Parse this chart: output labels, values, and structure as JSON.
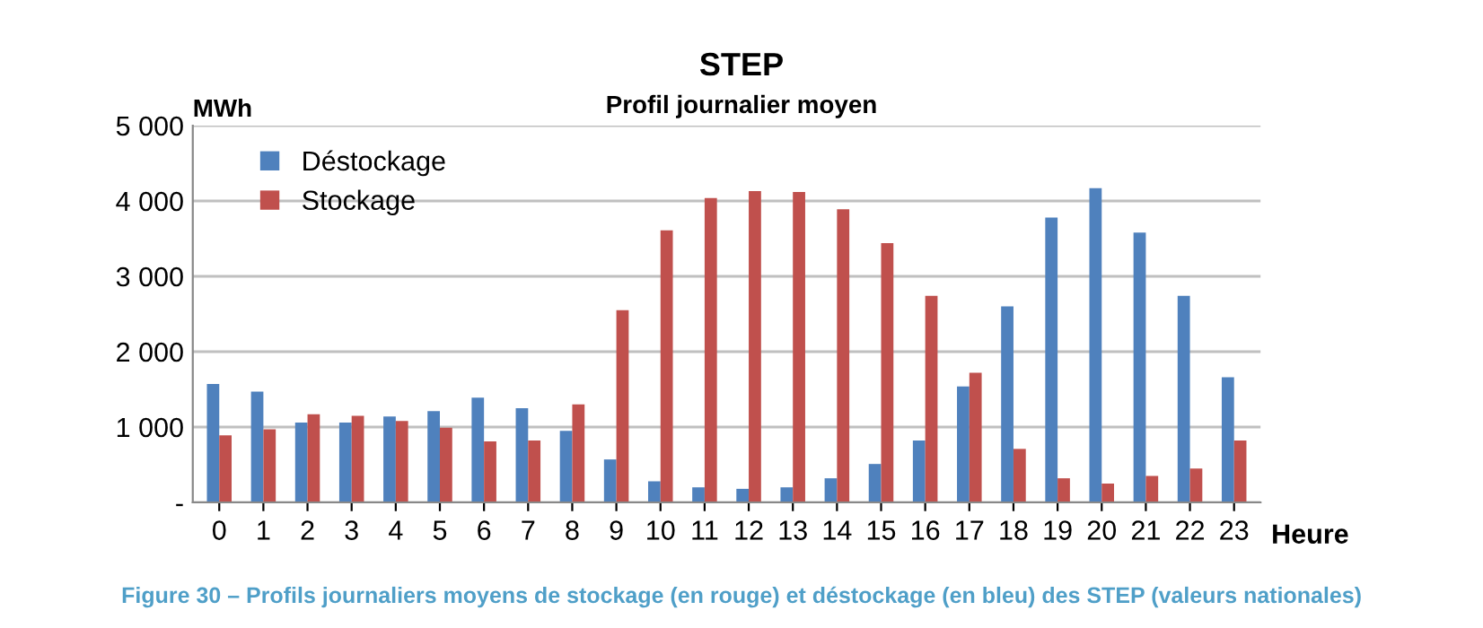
{
  "chart_data": {
    "type": "bar",
    "title": "STEP",
    "subtitle": "Profil journalier moyen",
    "ylabel": "MWh",
    "xlabel": "Heure",
    "annotations": [
      "Figure 30 – Profils journaliers moyens de stockage (en rouge) et déstockage (en bleu) des STEP (valeurs nationales)"
    ],
    "categories": [
      "0",
      "1",
      "2",
      "3",
      "4",
      "5",
      "6",
      "7",
      "8",
      "9",
      "10",
      "11",
      "12",
      "13",
      "14",
      "15",
      "16",
      "17",
      "18",
      "19",
      "20",
      "21",
      "22",
      "23"
    ],
    "series": [
      {
        "name": "Déstockage",
        "color": "#4f81bd",
        "values": [
          1570,
          1470,
          1060,
          1060,
          1140,
          1210,
          1390,
          1250,
          950,
          570,
          280,
          200,
          180,
          200,
          320,
          510,
          820,
          1540,
          2600,
          3780,
          4170,
          3580,
          2740,
          1660
        ]
      },
      {
        "name": "Stockage",
        "color": "#c0504d",
        "values": [
          890,
          970,
          1170,
          1150,
          1080,
          990,
          810,
          820,
          1300,
          2550,
          3610,
          4040,
          4130,
          4120,
          3890,
          3440,
          2740,
          1720,
          710,
          320,
          250,
          350,
          450,
          820
        ]
      }
    ],
    "ylim": [
      0,
      5000
    ],
    "yticks": [
      {
        "value": 0,
        "label": "-"
      },
      {
        "value": 1000,
        "label": "1 000"
      },
      {
        "value": 2000,
        "label": "2 000"
      },
      {
        "value": 3000,
        "label": "3 000"
      },
      {
        "value": 4000,
        "label": "4 000"
      },
      {
        "value": 5000,
        "label": "5 000"
      }
    ],
    "grid": "y",
    "legend": "top left"
  }
}
